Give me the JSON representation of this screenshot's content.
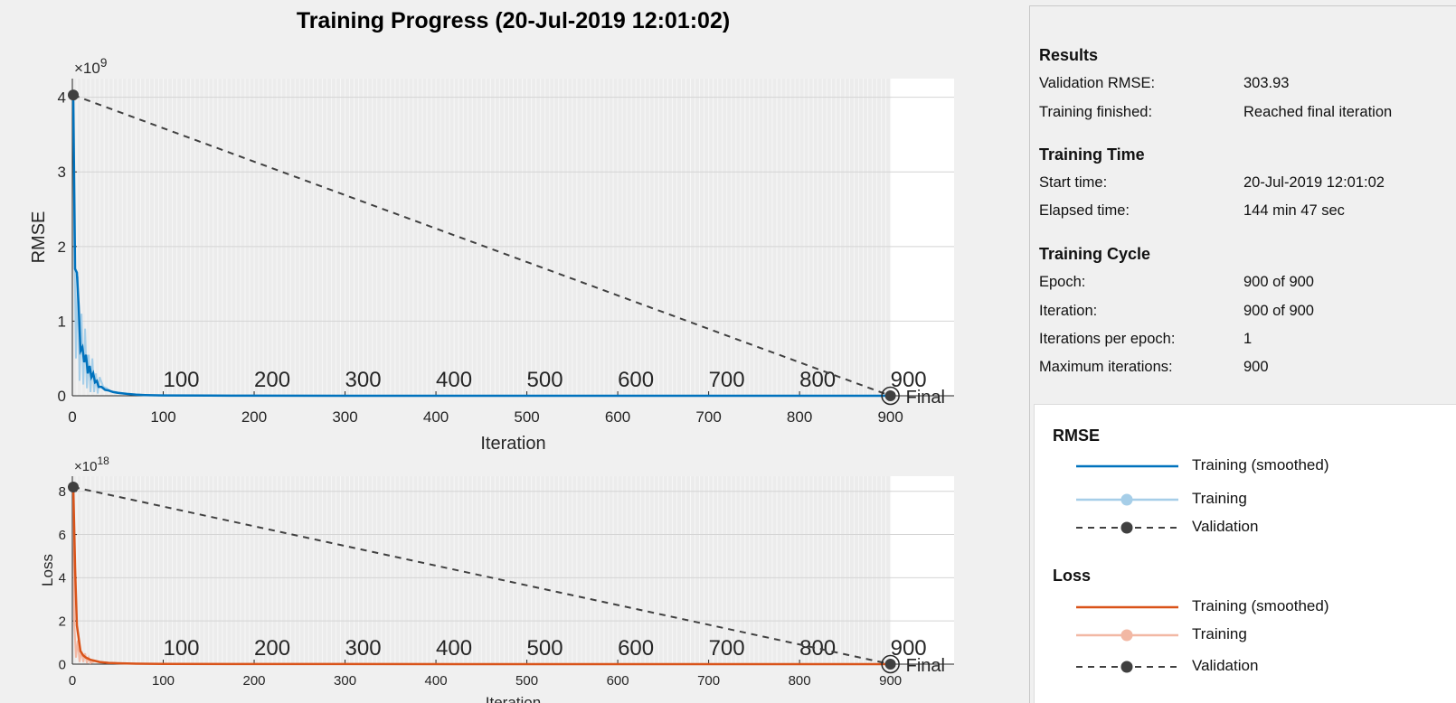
{
  "figure_title": "Training Progress (20-Jul-2019 12:01:02)",
  "colors": {
    "rmse_smoothed": "#0072bd",
    "rmse_raw": "#a6cee8",
    "loss_smoothed": "#d95319",
    "loss_raw": "#f2b8a4",
    "validation": "#404040",
    "grid_shade": "#ececec"
  },
  "chart_data": [
    {
      "type": "line",
      "xlabel": "Iteration",
      "ylabel": "RMSE",
      "exponent_label": "×10",
      "exponent_power": "9",
      "xlim": [
        0,
        970
      ],
      "ylim": [
        0,
        4.25
      ],
      "xticks": [
        0,
        100,
        200,
        300,
        400,
        500,
        600,
        700,
        800,
        900
      ],
      "yticks": [
        0,
        1,
        2,
        3,
        4
      ],
      "epoch_labels": [
        "100",
        "200",
        "300",
        "400",
        "500",
        "600",
        "700",
        "800",
        "900"
      ],
      "final_label": "Final",
      "grid": true,
      "series": [
        {
          "name": "Training (smoothed)",
          "x": [
            1,
            3,
            5,
            7,
            9,
            11,
            13,
            15,
            17,
            19,
            21,
            23,
            25,
            27,
            29,
            32,
            36,
            40,
            45,
            50,
            60,
            70,
            80,
            100,
            150,
            200,
            300,
            500,
            700,
            900
          ],
          "values": [
            4.0,
            1.7,
            1.65,
            1.2,
            0.6,
            0.65,
            0.45,
            0.55,
            0.3,
            0.4,
            0.25,
            0.3,
            0.18,
            0.2,
            0.12,
            0.12,
            0.08,
            0.07,
            0.05,
            0.04,
            0.025,
            0.015,
            0.01,
            0.005,
            0.002,
            0.001,
            0.0005,
            0.0003,
            0.0002,
            0.0001
          ]
        },
        {
          "name": "Training",
          "x": [
            1,
            2,
            4,
            6,
            8,
            10,
            12,
            14,
            16,
            18,
            20,
            22,
            24,
            26,
            28,
            30,
            34,
            38,
            42,
            48,
            55,
            65,
            80,
            100,
            150,
            200,
            300,
            500,
            700,
            900
          ],
          "values": [
            4.1,
            2.3,
            0.5,
            1.6,
            0.2,
            1.1,
            0.15,
            0.9,
            0.1,
            0.55,
            0.05,
            0.5,
            0.05,
            0.3,
            0.03,
            0.25,
            0.12,
            0.1,
            0.06,
            0.05,
            0.03,
            0.02,
            0.01,
            0.005,
            0.002,
            0.001,
            0.0005,
            0.0003,
            0.0002,
            0.0001
          ]
        },
        {
          "name": "Validation",
          "x": [
            1,
            900
          ],
          "values": [
            4.03,
            3e-07
          ]
        }
      ]
    },
    {
      "type": "line",
      "xlabel": "Iteration",
      "ylabel": "Loss",
      "exponent_label": "×10",
      "exponent_power": "18",
      "xlim": [
        0,
        970
      ],
      "ylim": [
        0,
        8.7
      ],
      "xticks": [
        0,
        100,
        200,
        300,
        400,
        500,
        600,
        700,
        800,
        900
      ],
      "yticks": [
        0,
        2,
        4,
        6,
        8
      ],
      "epoch_labels": [
        "100",
        "200",
        "300",
        "400",
        "500",
        "600",
        "700",
        "800",
        "900"
      ],
      "final_label": "Final",
      "grid": true,
      "series": [
        {
          "name": "Training (smoothed)",
          "x": [
            1,
            3,
            5,
            7,
            9,
            12,
            15,
            20,
            25,
            30,
            40,
            50,
            70,
            100,
            200,
            500,
            900
          ],
          "values": [
            8.2,
            4.5,
            1.8,
            1.2,
            0.6,
            0.4,
            0.3,
            0.2,
            0.15,
            0.1,
            0.06,
            0.04,
            0.02,
            0.01,
            0.003,
            0.001,
            0.0005
          ]
        },
        {
          "name": "Training",
          "x": [
            1,
            2,
            4,
            6,
            8,
            10,
            12,
            14,
            16,
            18,
            20,
            25,
            30,
            40,
            60,
            100,
            200,
            500,
            900
          ],
          "values": [
            8.3,
            2.0,
            0.3,
            1.1,
            0.1,
            0.6,
            0.1,
            0.5,
            0.05,
            0.3,
            0.05,
            0.15,
            0.08,
            0.05,
            0.03,
            0.01,
            0.003,
            0.001,
            0.0005
          ]
        },
        {
          "name": "Validation",
          "x": [
            1,
            900
          ],
          "values": [
            8.2,
            1e-07
          ]
        }
      ]
    }
  ],
  "results": {
    "heading": "Results",
    "rows": [
      {
        "label": "Validation RMSE:",
        "value": "303.93"
      },
      {
        "label": "Training finished:",
        "value": "Reached final iteration"
      }
    ]
  },
  "training_time": {
    "heading": "Training Time",
    "rows": [
      {
        "label": "Start time:",
        "value": "20-Jul-2019 12:01:02"
      },
      {
        "label": "Elapsed time:",
        "value": "144 min 47 sec"
      }
    ]
  },
  "training_cycle": {
    "heading": "Training Cycle",
    "rows": [
      {
        "label": "Epoch:",
        "value": "900 of 900"
      },
      {
        "label": "Iteration:",
        "value": "900 of 900"
      },
      {
        "label": "Iterations per epoch:",
        "value": "1"
      },
      {
        "label": "Maximum iterations:",
        "value": "900"
      }
    ]
  },
  "legend": {
    "rmse": {
      "heading": "RMSE",
      "items": [
        {
          "label": "Training (smoothed)",
          "style": "smoothed"
        },
        {
          "label": "Training",
          "style": "raw"
        },
        {
          "label": "Validation",
          "style": "validation"
        }
      ]
    },
    "loss": {
      "heading": "Loss",
      "items": [
        {
          "label": "Training (smoothed)",
          "style": "smoothed"
        },
        {
          "label": "Training",
          "style": "raw"
        },
        {
          "label": "Validation",
          "style": "validation"
        }
      ]
    }
  }
}
